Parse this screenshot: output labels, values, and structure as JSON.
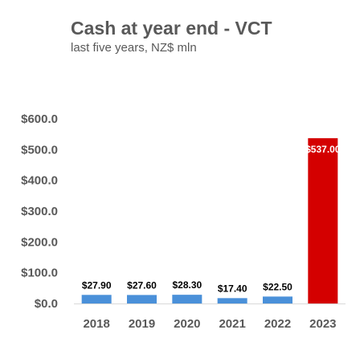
{
  "chart_data": {
    "type": "bar",
    "title": "Cash at year end - VCT",
    "subtitle": "last five years, NZ$ mln",
    "categories": [
      "2018",
      "2019",
      "2020",
      "2021",
      "2022",
      "2023"
    ],
    "values": [
      27.9,
      27.6,
      28.3,
      17.4,
      22.5,
      537.0
    ],
    "data_labels": [
      "$27.90",
      "$27.60",
      "$28.30",
      "$17.40",
      "$22.50",
      "$537.00"
    ],
    "ylim": [
      0,
      600
    ],
    "yticks": [
      0,
      100,
      200,
      300,
      400,
      500,
      600
    ],
    "ytick_labels": [
      "$0.0",
      "$100.0",
      "$200.0",
      "$300.0",
      "$400.0",
      "$500.0",
      "$600.0"
    ],
    "bar_colors": [
      "#4a90d9",
      "#4a90d9",
      "#4a90d9",
      "#4a90d9",
      "#4a90d9",
      "#d40000"
    ],
    "grid": false,
    "legend": "none"
  }
}
